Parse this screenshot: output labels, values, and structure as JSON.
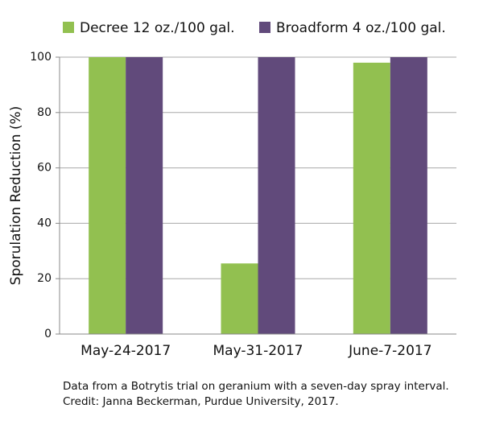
{
  "chart_data": {
    "type": "bar",
    "categories": [
      "May-24-2017",
      "May-31-2017",
      "June-7-2017"
    ],
    "series": [
      {
        "name": "Decree 12 oz./100 gal.",
        "color": "#92c050",
        "values": [
          100,
          25.5,
          98
        ]
      },
      {
        "name": "Broadform 4 oz./100 gal.",
        "color": "#614a7b",
        "values": [
          100,
          100,
          100
        ]
      }
    ],
    "y_label": "Sporulation Reduction (%)",
    "ylim": [
      0,
      100
    ],
    "yticks": [
      0,
      20,
      40,
      60,
      80,
      100
    ],
    "grid": true,
    "caption": [
      "Data from a Botrytis trial on geranium with a seven-day spray interval.",
      "Credit: Janna Beckerman, Purdue University, 2017."
    ]
  }
}
